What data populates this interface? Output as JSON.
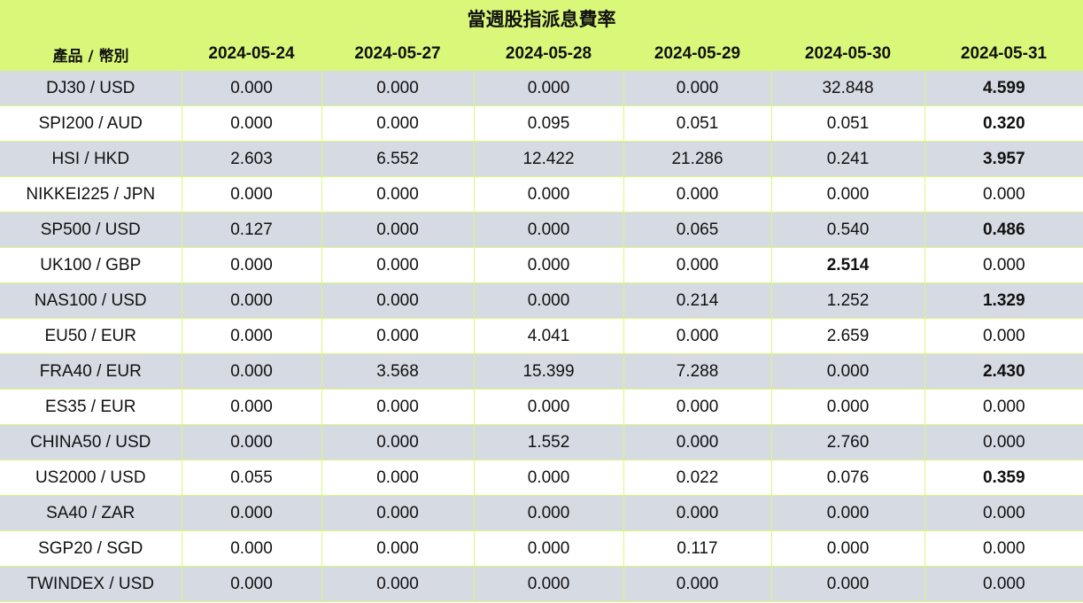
{
  "title": "當週股指派息費率",
  "header": {
    "product": "產品 / 幣別",
    "dates": [
      "2024-05-24",
      "2024-05-27",
      "2024-05-28",
      "2024-05-29",
      "2024-05-30",
      "2024-05-31"
    ]
  },
  "rows": [
    {
      "product": "DJ30 / USD",
      "values": [
        "0.000",
        "0.000",
        "0.000",
        "0.000",
        "32.848",
        "4.599"
      ],
      "bold": [
        5
      ]
    },
    {
      "product": "SPI200 / AUD",
      "values": [
        "0.000",
        "0.000",
        "0.095",
        "0.051",
        "0.051",
        "0.320"
      ],
      "bold": [
        5
      ]
    },
    {
      "product": "HSI / HKD",
      "values": [
        "2.603",
        "6.552",
        "12.422",
        "21.286",
        "0.241",
        "3.957"
      ],
      "bold": [
        5
      ]
    },
    {
      "product": "NIKKEI225 / JPN",
      "values": [
        "0.000",
        "0.000",
        "0.000",
        "0.000",
        "0.000",
        "0.000"
      ],
      "bold": []
    },
    {
      "product": "SP500 / USD",
      "values": [
        "0.127",
        "0.000",
        "0.000",
        "0.065",
        "0.540",
        "0.486"
      ],
      "bold": [
        5
      ]
    },
    {
      "product": "UK100 / GBP",
      "values": [
        "0.000",
        "0.000",
        "0.000",
        "0.000",
        "2.514",
        "0.000"
      ],
      "bold": [
        4
      ]
    },
    {
      "product": "NAS100 / USD",
      "values": [
        "0.000",
        "0.000",
        "0.000",
        "0.214",
        "1.252",
        "1.329"
      ],
      "bold": [
        5
      ]
    },
    {
      "product": "EU50 / EUR",
      "values": [
        "0.000",
        "0.000",
        "4.041",
        "0.000",
        "2.659",
        "0.000"
      ],
      "bold": []
    },
    {
      "product": "FRA40 / EUR",
      "values": [
        "0.000",
        "3.568",
        "15.399",
        "7.288",
        "0.000",
        "2.430"
      ],
      "bold": [
        5
      ]
    },
    {
      "product": "ES35 / EUR",
      "values": [
        "0.000",
        "0.000",
        "0.000",
        "0.000",
        "0.000",
        "0.000"
      ],
      "bold": []
    },
    {
      "product": "CHINA50 / USD",
      "values": [
        "0.000",
        "0.000",
        "1.552",
        "0.000",
        "2.760",
        "0.000"
      ],
      "bold": []
    },
    {
      "product": "US2000 / USD",
      "values": [
        "0.055",
        "0.000",
        "0.000",
        "0.022",
        "0.076",
        "0.359"
      ],
      "bold": [
        5
      ]
    },
    {
      "product": "SA40 / ZAR",
      "values": [
        "0.000",
        "0.000",
        "0.000",
        "0.000",
        "0.000",
        "0.000"
      ],
      "bold": []
    },
    {
      "product": "SGP20 / SGD",
      "values": [
        "0.000",
        "0.000",
        "0.000",
        "0.117",
        "0.000",
        "0.000"
      ],
      "bold": []
    },
    {
      "product": "TWINDEX / USD",
      "values": [
        "0.000",
        "0.000",
        "0.000",
        "0.000",
        "0.000",
        "0.000"
      ],
      "bold": []
    }
  ],
  "colors": {
    "header_bg": "#d9f87a",
    "row_alt_bg": "#d6dae3",
    "row_bg": "#ffffff"
  }
}
